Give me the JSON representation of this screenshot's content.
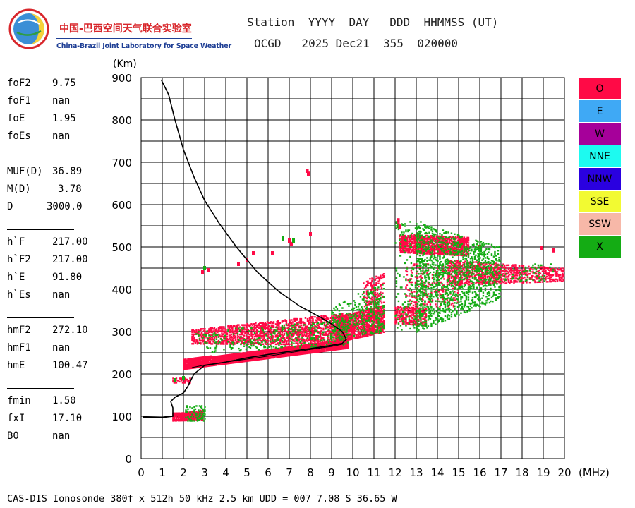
{
  "logo": {
    "cn": "中国-巴西空间天气联合实验室",
    "en": "China-Brazil Joint Laboratory for Space Weather"
  },
  "header": {
    "line1": "Station  YYYY  DAY   DDD  HHMMSS (UT)",
    "line2": "OCGD   2025 Dec21  355  020000"
  },
  "params": [
    {
      "name": "foF2",
      "value": "9.75"
    },
    {
      "name": "foF1",
      "value": "nan"
    },
    {
      "name": "foE",
      "value": "1.95"
    },
    {
      "name": "foEs",
      "value": "nan"
    },
    {
      "name": "MUF(D)",
      "value": "36.89"
    },
    {
      "name": "M(D)",
      "value": "3.78"
    },
    {
      "name": "D",
      "value": "3000.0"
    },
    {
      "name": "h`F",
      "value": "217.00"
    },
    {
      "name": "h`F2",
      "value": "217.00"
    },
    {
      "name": "h`E",
      "value": "91.80"
    },
    {
      "name": "h`Es",
      "value": "nan"
    },
    {
      "name": "hmF2",
      "value": "272.10"
    },
    {
      "name": "hmF1",
      "value": "nan"
    },
    {
      "name": "hmE",
      "value": "100.47"
    },
    {
      "name": "fmin",
      "value": "1.50"
    },
    {
      "name": "fxI",
      "value": "17.10"
    },
    {
      "name": "B0",
      "value": "nan"
    }
  ],
  "footer": "CAS-DIS Ionosonde 380f x 512h 50 kHz 2.5 km UDD = 007 7.08 S 36.65 W",
  "legend": [
    {
      "label": "O",
      "color": "#ff0a46"
    },
    {
      "label": "E",
      "color": "#3fa9f5"
    },
    {
      "label": "W",
      "color": "#a6009a"
    },
    {
      "label": "NNE",
      "color": "#1dfaf0"
    },
    {
      "label": "NNW",
      "color": "#2a00e0"
    },
    {
      "label": "SSE",
      "color": "#f2fa32"
    },
    {
      "label": "SSW",
      "color": "#f7b8a8"
    },
    {
      "label": "X",
      "color": "#14ac14"
    }
  ],
  "chart_data": {
    "type": "scatter",
    "xlabel": "(MHz)",
    "ylabel": "(Km)",
    "xlim": [
      0,
      20
    ],
    "ylim": [
      0,
      900
    ],
    "xticks": [
      0,
      1,
      2,
      3,
      4,
      5,
      6,
      7,
      8,
      9,
      10,
      11,
      12,
      13,
      14,
      15,
      16,
      17,
      18,
      19,
      20
    ],
    "yticks": [
      0,
      100,
      200,
      300,
      400,
      500,
      600,
      700,
      800,
      900
    ],
    "grid": true,
    "legend_position": "right",
    "colors": {
      "O": "#ff0a46",
      "X": "#14ac14",
      "profile": "#000000"
    },
    "profile": {
      "name": "",
      "points": [
        [
          0.1,
          98
        ],
        [
          1.0,
          97
        ],
        [
          1.5,
          100
        ],
        [
          1.5,
          120
        ],
        [
          1.4,
          135
        ],
        [
          1.6,
          145
        ],
        [
          2.0,
          155
        ],
        [
          2.2,
          170
        ],
        [
          2.5,
          200
        ],
        [
          3.0,
          220
        ],
        [
          4.0,
          228
        ],
        [
          5.0,
          238
        ],
        [
          6.0,
          246
        ],
        [
          7.0,
          253
        ],
        [
          8.0,
          260
        ],
        [
          8.8,
          266
        ],
        [
          9.5,
          272
        ],
        [
          9.7,
          282
        ],
        [
          9.5,
          300
        ],
        [
          9.0,
          318
        ],
        [
          8.5,
          333
        ],
        [
          7.5,
          360
        ],
        [
          6.5,
          395
        ],
        [
          5.5,
          440
        ],
        [
          4.5,
          500
        ],
        [
          3.7,
          555
        ],
        [
          3.0,
          610
        ],
        [
          2.5,
          665
        ],
        [
          2.0,
          730
        ],
        [
          1.6,
          800
        ],
        [
          1.3,
          860
        ],
        [
          0.95,
          895
        ]
      ]
    },
    "layer_inner": {
      "points": [
        [
          2.4,
          215
        ],
        [
          3,
          221
        ],
        [
          4,
          228
        ],
        [
          5,
          235
        ],
        [
          6,
          242
        ],
        [
          7,
          250
        ],
        [
          8,
          258
        ],
        [
          9,
          265
        ],
        [
          9.6,
          271
        ]
      ]
    },
    "o_trace": {
      "name": "O",
      "regions": [
        {
          "x": [
            2.0,
            9.8
          ],
          "y_low_start": 212,
          "y_low_end": 262,
          "y_high_start": 235,
          "y_high_end": 282,
          "density": 1.3
        },
        {
          "x": [
            2.4,
            9.8
          ],
          "y_low_start": 272,
          "y_low_end": 270,
          "y_high_start": 305,
          "y_high_end": 345,
          "density": 0.55
        },
        {
          "x": [
            9.2,
            11.5
          ],
          "y_low_start": 275,
          "y_low_end": 300,
          "y_high_start": 335,
          "y_high_end": 365,
          "density": 0.9
        },
        {
          "x": [
            12.2,
            15.5
          ],
          "y_low_start": 488,
          "y_low_end": 480,
          "y_high_start": 530,
          "y_high_end": 525,
          "density": 0.9
        },
        {
          "x": [
            12.0,
            13.5
          ],
          "y_low_start": 320,
          "y_low_end": 315,
          "y_high_start": 360,
          "y_high_end": 355,
          "density": 0.6
        },
        {
          "x": [
            14.5,
            20.0
          ],
          "y_low_start": 410,
          "y_low_end": 420,
          "y_high_start": 470,
          "y_high_end": 450,
          "density": 0.5
        },
        {
          "x": [
            1.5,
            2.9
          ],
          "y_low_start": 90,
          "y_low_end": 92,
          "y_high_start": 108,
          "y_high_end": 115,
          "density": 1.2
        },
        {
          "x": [
            1.5,
            2.3
          ],
          "y_low_start": 180,
          "y_low_end": 180,
          "y_high_start": 192,
          "y_high_end": 192,
          "density": 0.6
        },
        {
          "x": [
            10.5,
            11.5
          ],
          "y_low_start": 360,
          "y_low_end": 370,
          "y_high_start": 420,
          "y_high_end": 440,
          "density": 0.3
        },
        {
          "x": [
            12.5,
            15.0
          ],
          "y_low_start": 360,
          "y_low_end": 360,
          "y_high_start": 460,
          "y_high_end": 460,
          "density": 0.15
        }
      ],
      "isolated": [
        [
          7.85,
          680
        ],
        [
          7.9,
          673
        ],
        [
          8.0,
          530
        ],
        [
          7.1,
          507
        ],
        [
          7.0,
          515
        ],
        [
          6.2,
          485
        ],
        [
          5.3,
          485
        ],
        [
          5.0,
          470
        ],
        [
          4.6,
          460
        ],
        [
          3.2,
          445
        ],
        [
          2.9,
          440
        ],
        [
          12.15,
          563
        ],
        [
          12.15,
          553
        ],
        [
          12.2,
          548
        ],
        [
          18.9,
          498
        ],
        [
          19.5,
          492
        ],
        [
          16.0,
          500
        ]
      ]
    },
    "x_trace": {
      "name": "X",
      "regions": [
        {
          "x": [
            2.6,
            9.8
          ],
          "y_low_start": 250,
          "y_low_end": 270,
          "y_high_start": 300,
          "y_high_end": 330,
          "density": 0.12
        },
        {
          "x": [
            9.0,
            11.5
          ],
          "y_low_start": 280,
          "y_low_end": 300,
          "y_high_start": 360,
          "y_high_end": 420,
          "density": 0.2
        },
        {
          "x": [
            13.0,
            17.0
          ],
          "y_low_start": 300,
          "y_low_end": 380,
          "y_high_start": 560,
          "y_high_end": 500,
          "density": 0.25
        },
        {
          "x": [
            12.0,
            13.5
          ],
          "y_low_start": 300,
          "y_low_end": 300,
          "y_high_start": 560,
          "y_high_end": 560,
          "density": 0.08
        },
        {
          "x": [
            2.1,
            3.0
          ],
          "y_low_start": 90,
          "y_low_end": 90,
          "y_high_start": 125,
          "y_high_end": 125,
          "density": 0.35
        },
        {
          "x": [
            17.0,
            19.5
          ],
          "y_low_start": 420,
          "y_low_end": 420,
          "y_high_start": 460,
          "y_high_end": 460,
          "density": 0.08
        }
      ],
      "isolated": [
        [
          6.7,
          520
        ],
        [
          7.2,
          515
        ],
        [
          3.0,
          450
        ],
        [
          2.0,
          190
        ],
        [
          1.6,
          185
        ]
      ]
    }
  }
}
